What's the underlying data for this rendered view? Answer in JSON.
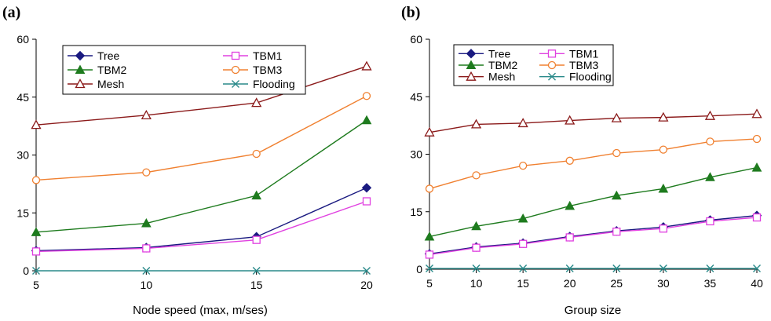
{
  "chart_data": [
    {
      "type": "line",
      "panel_label": "(a)",
      "xlabel": "Node speed (max, m/ses)",
      "ylabel": "",
      "x": [
        5,
        10,
        15,
        20
      ],
      "x_tick_labels": [
        "5",
        "10",
        "15",
        "20"
      ],
      "y_tick_labels": [
        "0",
        "15",
        "30",
        "45",
        "60"
      ],
      "ylim": [
        0,
        60
      ],
      "grid": false,
      "legend_position": "top-left",
      "series": [
        {
          "name": "Tree",
          "marker": "diamond",
          "color": "#1a1a80",
          "values": [
            5.2,
            6.0,
            8.8,
            21.5
          ]
        },
        {
          "name": "TBM1",
          "marker": "square-open",
          "color": "#e040e0",
          "values": [
            5.0,
            5.8,
            8.0,
            18.0
          ]
        },
        {
          "name": "TBM2",
          "marker": "triangle",
          "color": "#1e7b1e",
          "values": [
            10.0,
            12.3,
            19.5,
            39.0
          ]
        },
        {
          "name": "TBM3",
          "marker": "circle-open",
          "color": "#f08030",
          "values": [
            23.5,
            25.5,
            30.3,
            45.3
          ]
        },
        {
          "name": "Mesh",
          "marker": "triangle-open",
          "color": "#8b1a1a",
          "values": [
            37.8,
            40.3,
            43.5,
            53.0
          ]
        },
        {
          "name": "Flooding",
          "marker": "x",
          "color": "#2a8a8a",
          "values": [
            0.0,
            0.0,
            0.0,
            0.0
          ]
        }
      ]
    },
    {
      "type": "line",
      "panel_label": "(b)",
      "xlabel": "Group size",
      "ylabel": "",
      "x": [
        5,
        10,
        15,
        20,
        25,
        30,
        35,
        40
      ],
      "x_tick_labels": [
        "5",
        "10",
        "15",
        "20",
        "25",
        "30",
        "35",
        "40"
      ],
      "y_tick_labels": [
        "0",
        "15",
        "30",
        "45",
        "60"
      ],
      "ylim": [
        0,
        60
      ],
      "grid": false,
      "legend_position": "top-left",
      "series": [
        {
          "name": "Tree",
          "marker": "diamond",
          "color": "#1a1a80",
          "values": [
            4.0,
            5.8,
            6.8,
            8.5,
            10.0,
            11.0,
            12.8,
            14.0
          ]
        },
        {
          "name": "TBM1",
          "marker": "square-open",
          "color": "#e040e0",
          "values": [
            3.8,
            5.6,
            6.6,
            8.3,
            9.8,
            10.6,
            12.5,
            13.5
          ]
        },
        {
          "name": "TBM2",
          "marker": "triangle",
          "color": "#1e7b1e",
          "values": [
            8.5,
            11.2,
            13.2,
            16.5,
            19.2,
            21.0,
            24.0,
            26.5
          ]
        },
        {
          "name": "TBM3",
          "marker": "circle-open",
          "color": "#f08030",
          "values": [
            21.0,
            24.5,
            27.0,
            28.3,
            30.3,
            31.2,
            33.3,
            34.0
          ]
        },
        {
          "name": "Mesh",
          "marker": "triangle-open",
          "color": "#8b1a1a",
          "values": [
            35.7,
            37.8,
            38.1,
            38.8,
            39.4,
            39.6,
            40.0,
            40.5
          ]
        },
        {
          "name": "Flooding",
          "marker": "x",
          "color": "#2a8a8a",
          "values": [
            0.2,
            0.2,
            0.2,
            0.2,
            0.2,
            0.2,
            0.2,
            0.2
          ]
        }
      ]
    }
  ]
}
